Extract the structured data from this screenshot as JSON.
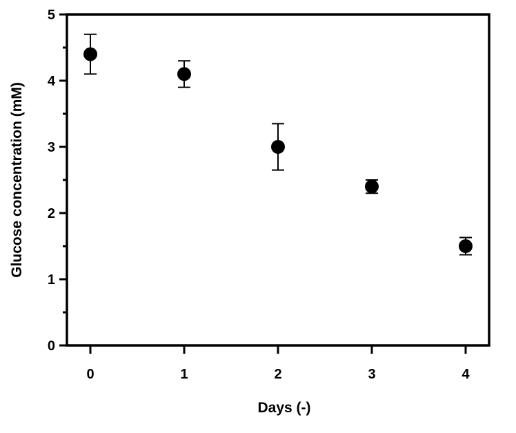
{
  "chart_data": {
    "type": "scatter",
    "title": "",
    "xlabel": "Days (-)",
    "ylabel": "Glucose concentration (mM)",
    "xlim": [
      -0.25,
      4.25
    ],
    "ylim": [
      0,
      5
    ],
    "x_ticks": [
      0,
      1,
      2,
      3,
      4
    ],
    "y_ticks": [
      0,
      1,
      2,
      3,
      4,
      5
    ],
    "x_tick_labels": [
      "0",
      "1",
      "2",
      "3",
      "4"
    ],
    "y_tick_labels": [
      "0",
      "1",
      "2",
      "3",
      "4",
      "5"
    ],
    "y_minor_ticks": [
      0.5,
      1.5,
      2.5,
      3.5,
      4.5
    ],
    "grid": false,
    "legend": "none",
    "series": [
      {
        "x": [
          0,
          1,
          2,
          3,
          4
        ],
        "y": [
          4.4,
          4.1,
          3.0,
          2.4,
          1.5
        ],
        "error": [
          0.3,
          0.2,
          0.35,
          0.1,
          0.13
        ],
        "color": "#000000",
        "marker": "circle"
      }
    ]
  }
}
